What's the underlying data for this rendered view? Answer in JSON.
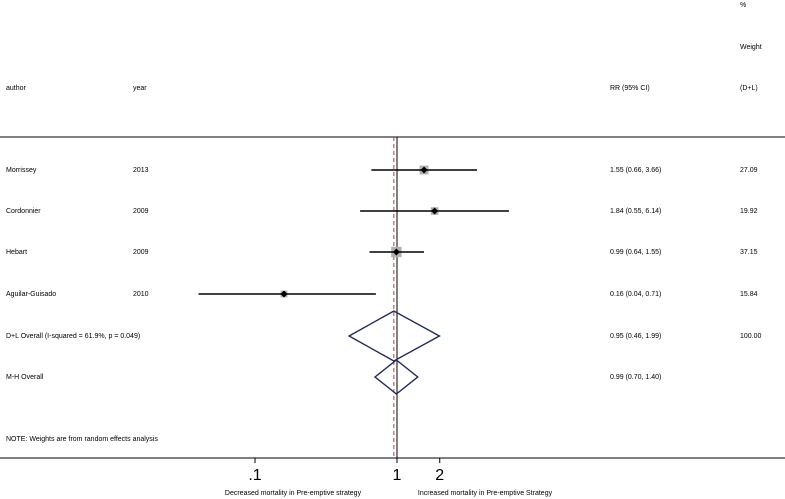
{
  "chart_data": {
    "type": "forest",
    "header": {
      "author": "author",
      "year": "year",
      "rr": "RR (95% CI)",
      "weight_line1": "%",
      "weight_line2": "Weight",
      "weight_line3": "(D+L)"
    },
    "studies": [
      {
        "author": "Morrissey",
        "year": "2013",
        "rr": 1.55,
        "lo": 0.66,
        "hi": 3.66,
        "label": "1.55 (0.66, 3.66)",
        "weight": 27.09,
        "weight_label": "27.09"
      },
      {
        "author": "Cordonnier",
        "year": "2009",
        "rr": 1.84,
        "lo": 0.55,
        "hi": 6.14,
        "label": "1.84 (0.55, 6.14)",
        "weight": 19.92,
        "weight_label": "19.92"
      },
      {
        "author": "Hebart",
        "year": "2009",
        "rr": 0.99,
        "lo": 0.64,
        "hi": 1.55,
        "label": "0.99 (0.64, 1.55)",
        "weight": 37.15,
        "weight_label": "37.15"
      },
      {
        "author": "Aguilar-Guisado",
        "year": "2010",
        "rr": 0.16,
        "lo": 0.04,
        "hi": 0.71,
        "label": "0.16 (0.04, 0.71)",
        "weight": 15.84,
        "weight_label": "15.84"
      }
    ],
    "pooled": [
      {
        "label_text": "D+L Overall  (I-squared = 61.9%, p = 0.049)",
        "rr": 0.95,
        "lo": 0.46,
        "hi": 1.99,
        "label": "0.95 (0.46, 1.99)",
        "weight_label": "100.00"
      },
      {
        "label_text": "M-H Overall",
        "rr": 0.99,
        "lo": 0.7,
        "hi": 1.4,
        "label": "0.99 (0.70, 1.40)",
        "weight_label": ""
      }
    ],
    "note": "NOTE: Weights are from random effects analysis",
    "x_scale": "log",
    "xlim": [
      0.02,
      20
    ],
    "x_ticks": [
      {
        "value": 0.1,
        "label": ".1"
      },
      {
        "value": 1,
        "label": "1"
      },
      {
        "value": 2,
        "label": "2"
      }
    ],
    "null_line": 1,
    "overall_line": 0.95,
    "xlabel_left": "Decreased mortality in Pre-emptive strategy",
    "xlabel_right": "Increased mortality in Pre-emptive Strategy",
    "colors": {
      "diamond": "#1f2a5c",
      "overall_line": "#c0392b",
      "box": "#b0b0b0",
      "line": "#000000"
    }
  }
}
